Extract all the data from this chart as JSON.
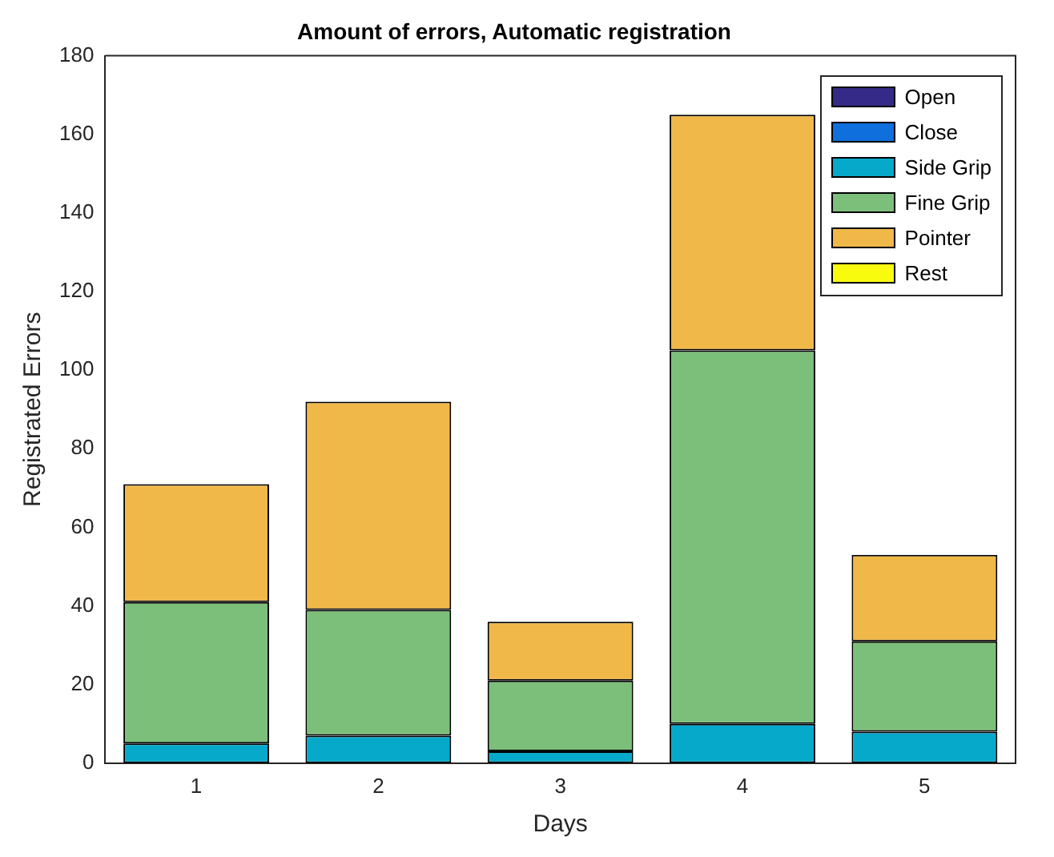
{
  "chart_data": {
    "type": "bar",
    "title": "Amount of errors, Automatic registration",
    "xlabel": "Days",
    "ylabel": "Registrated Errors",
    "categories": [
      "1",
      "2",
      "3",
      "4",
      "5"
    ],
    "stacked": true,
    "ylim": [
      0,
      180
    ],
    "yticks": [
      0,
      20,
      40,
      60,
      80,
      100,
      120,
      140,
      160,
      180
    ],
    "grid": false,
    "legend": "top right",
    "series": [
      {
        "name": "Open",
        "color": "#352a87",
        "values": [
          0,
          0,
          0,
          0,
          0
        ]
      },
      {
        "name": "Close",
        "color": "#0f6fdc",
        "values": [
          0,
          0,
          0,
          0,
          0
        ]
      },
      {
        "name": "Side Grip",
        "color": "#06a9c9",
        "values": [
          5,
          7,
          3,
          10,
          8
        ]
      },
      {
        "name": "Fine Grip",
        "color": "#7cbf7b",
        "values": [
          36,
          32,
          18,
          95,
          23
        ]
      },
      {
        "name": "Pointer",
        "color": "#f0b849",
        "values": [
          30,
          53,
          15,
          60,
          22
        ]
      },
      {
        "name": "Rest",
        "color": "#f9fb0e",
        "values": [
          0,
          0,
          0,
          0,
          0
        ]
      }
    ]
  }
}
